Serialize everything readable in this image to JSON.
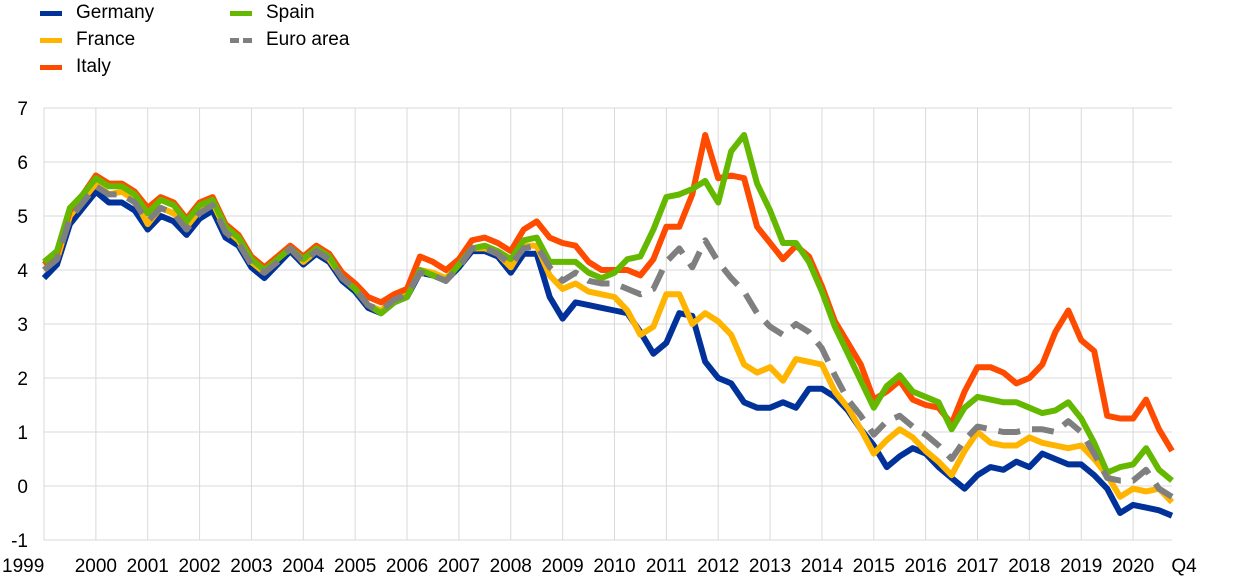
{
  "chart_data": {
    "type": "line",
    "title": "",
    "xlabel": "",
    "ylabel": "",
    "ylim": [
      -1,
      7
    ],
    "yticks": [
      "-1",
      "0",
      "1",
      "2",
      "3",
      "4",
      "5",
      "6",
      "7"
    ],
    "x_tick_labels": [
      "1999",
      "2000",
      "2001",
      "2002",
      "2003",
      "2004",
      "2005",
      "2006",
      "2007",
      "2008",
      "2009",
      "2010",
      "2011",
      "2012",
      "2013",
      "2014",
      "2015",
      "2016",
      "2017",
      "2018",
      "2019",
      "2020",
      "Q4"
    ],
    "x": [
      "1999Q1",
      "1999Q2",
      "1999Q3",
      "1999Q4",
      "2000Q1",
      "2000Q2",
      "2000Q3",
      "2000Q4",
      "2001Q1",
      "2001Q2",
      "2001Q3",
      "2001Q4",
      "2002Q1",
      "2002Q2",
      "2002Q3",
      "2002Q4",
      "2003Q1",
      "2003Q2",
      "2003Q3",
      "2003Q4",
      "2004Q1",
      "2004Q2",
      "2004Q3",
      "2004Q4",
      "2005Q1",
      "2005Q2",
      "2005Q3",
      "2005Q4",
      "2006Q1",
      "2006Q2",
      "2006Q3",
      "2006Q4",
      "2007Q1",
      "2007Q2",
      "2007Q3",
      "2007Q4",
      "2008Q1",
      "2008Q2",
      "2008Q3",
      "2008Q4",
      "2009Q1",
      "2009Q2",
      "2009Q3",
      "2009Q4",
      "2010Q1",
      "2010Q2",
      "2010Q3",
      "2010Q4",
      "2011Q1",
      "2011Q2",
      "2011Q3",
      "2011Q4",
      "2012Q1",
      "2012Q2",
      "2012Q3",
      "2012Q4",
      "2013Q1",
      "2013Q2",
      "2013Q3",
      "2013Q4",
      "2014Q1",
      "2014Q2",
      "2014Q3",
      "2014Q4",
      "2015Q1",
      "2015Q2",
      "2015Q3",
      "2015Q4",
      "2016Q1",
      "2016Q2",
      "2016Q3",
      "2016Q4",
      "2017Q1",
      "2017Q2",
      "2017Q3",
      "2017Q4",
      "2018Q1",
      "2018Q2",
      "2018Q3",
      "2018Q4",
      "2019Q1",
      "2019Q2",
      "2019Q3",
      "2019Q4",
      "2020Q1",
      "2020Q2",
      "2020Q3",
      "2020Q4"
    ],
    "grid": true,
    "legend_position": "top-left",
    "series": [
      {
        "name": "Germany",
        "color": "#003299",
        "dashed": false,
        "values": [
          3.85,
          4.1,
          4.85,
          5.15,
          5.45,
          5.25,
          5.25,
          5.1,
          4.75,
          5.0,
          4.9,
          4.65,
          4.95,
          5.1,
          4.6,
          4.45,
          4.05,
          3.85,
          4.1,
          4.35,
          4.1,
          4.3,
          4.15,
          3.8,
          3.6,
          3.3,
          3.2,
          3.4,
          3.5,
          3.95,
          3.9,
          3.8,
          4.05,
          4.35,
          4.35,
          4.25,
          3.95,
          4.3,
          4.3,
          3.5,
          3.1,
          3.4,
          3.35,
          3.3,
          3.25,
          3.2,
          2.85,
          2.45,
          2.65,
          3.2,
          3.15,
          2.3,
          2.0,
          1.9,
          1.55,
          1.45,
          1.45,
          1.55,
          1.45,
          1.8,
          1.8,
          1.65,
          1.4,
          1.05,
          0.75,
          0.35,
          0.55,
          0.7,
          0.6,
          0.35,
          0.15,
          -0.05,
          0.2,
          0.35,
          0.3,
          0.45,
          0.35,
          0.6,
          0.5,
          0.4,
          0.4,
          0.2,
          -0.05,
          -0.5,
          -0.35,
          -0.4,
          -0.45,
          -0.55
        ]
      },
      {
        "name": "France",
        "color": "#FFB400",
        "dashed": false,
        "values": [
          4.0,
          4.2,
          5.0,
          5.3,
          5.6,
          5.4,
          5.45,
          5.3,
          4.85,
          5.15,
          5.05,
          4.8,
          5.1,
          5.25,
          4.75,
          4.55,
          4.15,
          3.95,
          4.2,
          4.4,
          4.15,
          4.35,
          4.2,
          3.85,
          3.65,
          3.35,
          3.25,
          3.45,
          3.55,
          4.0,
          3.95,
          3.85,
          4.1,
          4.4,
          4.4,
          4.3,
          4.05,
          4.45,
          4.45,
          3.9,
          3.65,
          3.75,
          3.6,
          3.55,
          3.5,
          3.25,
          2.8,
          2.95,
          3.55,
          3.55,
          3.0,
          3.2,
          3.05,
          2.8,
          2.25,
          2.1,
          2.2,
          1.95,
          2.35,
          2.3,
          2.25,
          1.75,
          1.45,
          1.05,
          0.6,
          0.85,
          1.05,
          0.9,
          0.65,
          0.45,
          0.2,
          0.65,
          1.0,
          0.8,
          0.75,
          0.75,
          0.9,
          0.8,
          0.75,
          0.7,
          0.75,
          0.5,
          0.2,
          -0.2,
          -0.05,
          -0.1,
          -0.05,
          -0.3
        ]
      },
      {
        "name": "Italy",
        "color": "#FF4B00",
        "dashed": false,
        "values": [
          4.1,
          4.3,
          5.1,
          5.4,
          5.75,
          5.6,
          5.6,
          5.45,
          5.15,
          5.35,
          5.25,
          4.95,
          5.25,
          5.35,
          4.85,
          4.65,
          4.25,
          4.05,
          4.25,
          4.45,
          4.25,
          4.45,
          4.3,
          3.95,
          3.75,
          3.5,
          3.4,
          3.55,
          3.65,
          4.25,
          4.15,
          4.0,
          4.2,
          4.55,
          4.6,
          4.5,
          4.35,
          4.75,
          4.9,
          4.6,
          4.5,
          4.45,
          4.15,
          4.0,
          4.0,
          4.0,
          3.9,
          4.2,
          4.8,
          4.8,
          5.4,
          6.5,
          5.7,
          5.75,
          5.7,
          4.8,
          4.5,
          4.2,
          4.45,
          4.25,
          3.7,
          3.05,
          2.65,
          2.25,
          1.6,
          1.75,
          1.95,
          1.6,
          1.5,
          1.45,
          1.15,
          1.75,
          2.2,
          2.2,
          2.1,
          1.9,
          2.0,
          2.25,
          2.85,
          3.25,
          2.7,
          2.5,
          1.3,
          1.25,
          1.25,
          1.6,
          1.05,
          0.65
        ]
      },
      {
        "name": "Spain",
        "color": "#65B800",
        "dashed": false,
        "values": [
          4.15,
          4.35,
          5.15,
          5.4,
          5.7,
          5.55,
          5.55,
          5.4,
          5.05,
          5.3,
          5.2,
          4.9,
          5.2,
          5.3,
          4.8,
          4.6,
          4.2,
          4.0,
          4.2,
          4.4,
          4.2,
          4.4,
          4.25,
          3.85,
          3.65,
          3.35,
          3.2,
          3.4,
          3.5,
          4.0,
          3.9,
          3.8,
          4.1,
          4.4,
          4.45,
          4.35,
          4.2,
          4.55,
          4.6,
          4.15,
          4.15,
          4.15,
          3.95,
          3.85,
          3.95,
          4.2,
          4.25,
          4.75,
          5.35,
          5.4,
          5.5,
          5.65,
          5.25,
          6.2,
          6.5,
          5.6,
          5.1,
          4.5,
          4.5,
          4.15,
          3.6,
          2.95,
          2.45,
          1.95,
          1.45,
          1.85,
          2.05,
          1.75,
          1.65,
          1.55,
          1.05,
          1.45,
          1.65,
          1.6,
          1.55,
          1.55,
          1.45,
          1.35,
          1.4,
          1.55,
          1.25,
          0.8,
          0.25,
          0.35,
          0.4,
          0.7,
          0.3,
          0.1
        ]
      },
      {
        "name": "Euro area",
        "color": "#7F7F7F",
        "dashed": true,
        "values": [
          4.0,
          4.2,
          4.95,
          5.25,
          5.55,
          5.4,
          5.4,
          5.25,
          4.9,
          5.15,
          5.05,
          4.75,
          5.05,
          5.2,
          4.7,
          4.5,
          4.1,
          3.95,
          4.15,
          4.4,
          4.15,
          4.35,
          4.2,
          3.85,
          3.65,
          3.35,
          3.25,
          3.45,
          3.55,
          3.95,
          3.9,
          3.8,
          4.05,
          4.4,
          4.4,
          4.3,
          4.1,
          4.4,
          4.45,
          4.05,
          3.8,
          3.95,
          3.8,
          3.75,
          3.75,
          3.65,
          3.55,
          3.65,
          4.15,
          4.4,
          4.05,
          4.55,
          4.15,
          3.85,
          3.6,
          3.2,
          2.95,
          2.8,
          3.0,
          2.85,
          2.55,
          2.05,
          1.6,
          1.3,
          0.95,
          1.2,
          1.3,
          1.1,
          0.95,
          0.75,
          0.5,
          0.85,
          1.1,
          1.05,
          1.0,
          1.0,
          1.05,
          1.05,
          1.0,
          1.2,
          1.0,
          0.6,
          0.15,
          0.1,
          0.1,
          0.3,
          -0.05,
          -0.2
        ]
      }
    ]
  }
}
